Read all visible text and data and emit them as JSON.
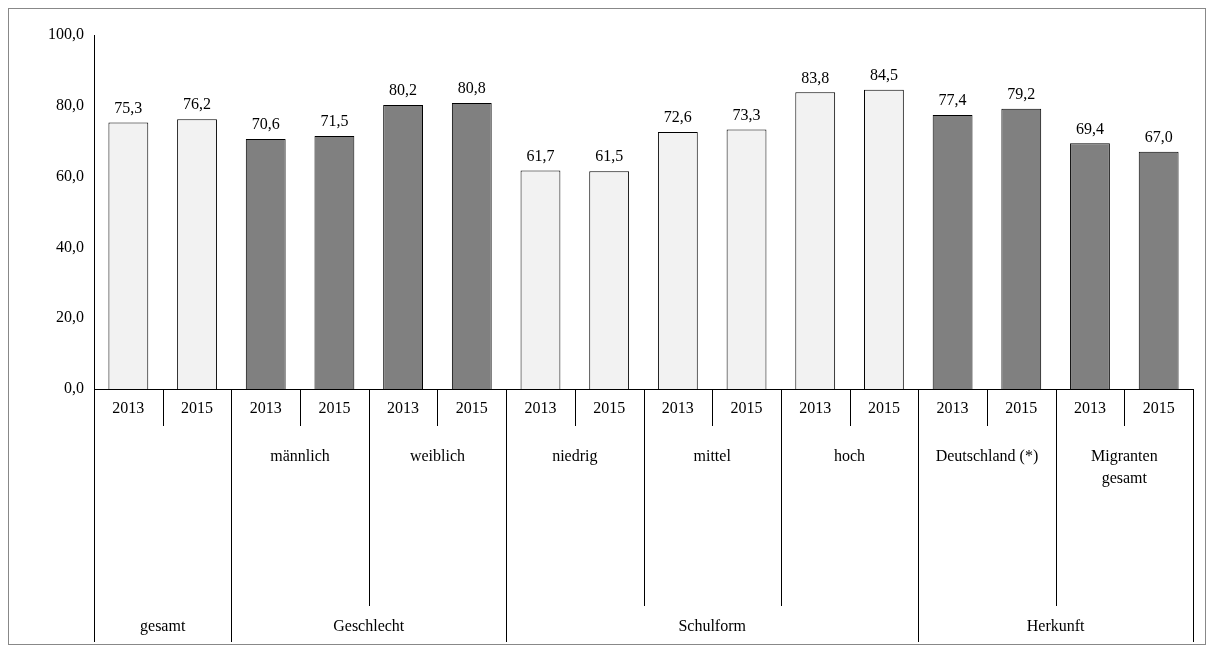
{
  "chart_data": {
    "type": "bar",
    "categories": [
      "2013",
      "2015",
      "2013",
      "2015",
      "2013",
      "2015",
      "2013",
      "2015",
      "2013",
      "2015",
      "2013",
      "2015",
      "2013",
      "2015",
      "2013",
      "2015"
    ],
    "values": [
      75.3,
      76.2,
      70.6,
      71.5,
      80.2,
      80.8,
      61.7,
      61.5,
      72.6,
      73.3,
      83.8,
      84.5,
      77.4,
      79.2,
      69.4,
      67.0
    ],
    "value_labels": [
      "75,3",
      "76,2",
      "70,6",
      "71,5",
      "80,2",
      "80,8",
      "61,7",
      "61,5",
      "72,6",
      "73,3",
      "83,8",
      "84,5",
      "77,4",
      "79,2",
      "69,4",
      "67,0"
    ],
    "colors": [
      "#f2f2f2",
      "#f2f2f2",
      "#808080",
      "#808080",
      "#808080",
      "#808080",
      "#f2f2f2",
      "#f2f2f2",
      "#f2f2f2",
      "#f2f2f2",
      "#f2f2f2",
      "#f2f2f2",
      "#808080",
      "#808080",
      "#808080",
      "#808080"
    ],
    "ylim": [
      0,
      100
    ],
    "yticks": [
      {
        "value": 0,
        "label": "0,0"
      },
      {
        "value": 20,
        "label": "20,0"
      },
      {
        "value": 40,
        "label": "40,0"
      },
      {
        "value": 60,
        "label": "60,0"
      },
      {
        "value": 80,
        "label": "80,0"
      },
      {
        "value": 100,
        "label": "100,0"
      }
    ],
    "grid": false,
    "legend": false,
    "annotations": [
      "männlich",
      "weiblich",
      "niedrig",
      "mittel",
      "hoch",
      "Deutschland (*)",
      "Migranten gesamt",
      "gesamt",
      "Geschlecht",
      "Schulform",
      "Herkunft"
    ]
  }
}
